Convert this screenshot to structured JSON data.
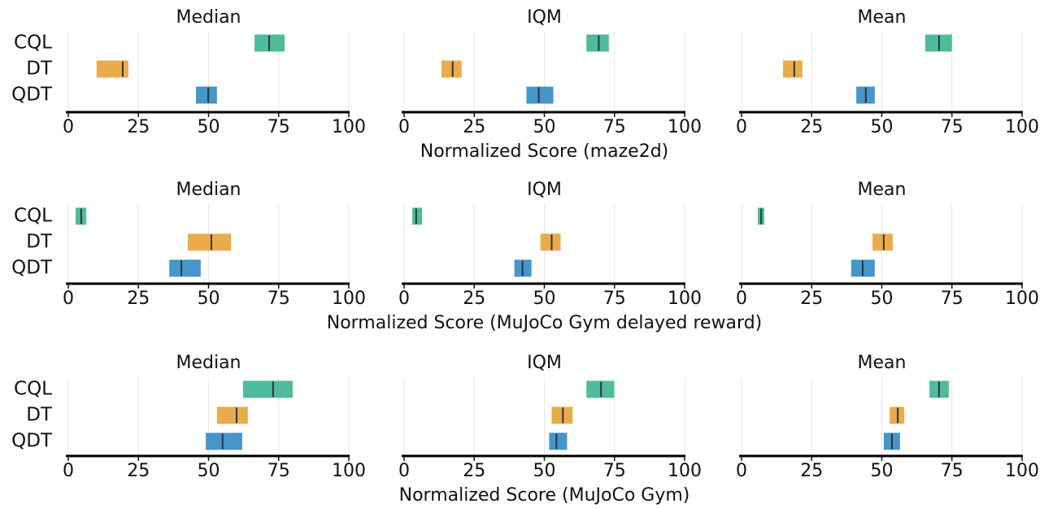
{
  "chart_data": [
    {
      "type": "interval",
      "title": "Median",
      "categories": [
        "CQL",
        "DT",
        "QDT"
      ],
      "colors": [
        "#45b896",
        "#e9a840",
        "#3b90c8"
      ],
      "values": [
        71.6,
        19.4,
        49.9
      ],
      "lower": [
        66.4,
        10.1,
        45.5
      ],
      "upper": [
        77.1,
        21.4,
        53
      ],
      "xlim": [
        0,
        100
      ],
      "xticks": [
        0,
        25,
        50,
        75,
        100
      ],
      "grid": true
    },
    {
      "type": "interval",
      "title": "IQM",
      "xlabel": "Normalized Score (maze2d)",
      "colors": [
        "#45b896",
        "#e9a840",
        "#3b90c8"
      ],
      "values": [
        69.4,
        17.3,
        48
      ],
      "lower": [
        65,
        13.3,
        43.6
      ],
      "upper": [
        73,
        20.5,
        53.2
      ],
      "xlim": [
        0,
        100
      ],
      "xticks": [
        0,
        25,
        50,
        75,
        100
      ],
      "grid": true
    },
    {
      "type": "interval",
      "title": "Mean",
      "colors": [
        "#45b896",
        "#e9a840",
        "#3b90c8"
      ],
      "values": [
        70.4,
        18.8,
        44.3
      ],
      "lower": [
        65.5,
        14.8,
        40.9
      ],
      "upper": [
        75,
        21.7,
        47.5
      ],
      "xlim": [
        0,
        100
      ],
      "xticks": [
        0,
        25,
        50,
        75,
        100
      ],
      "grid": true
    },
    {
      "type": "interval",
      "title": "Median",
      "categories": [
        "CQL",
        "DT",
        "QDT"
      ],
      "colors": [
        "#45b896",
        "#e9a840",
        "#3b90c8"
      ],
      "values": [
        4.6,
        51,
        40.3
      ],
      "lower": [
        2.6,
        42.6,
        36
      ],
      "upper": [
        6.4,
        58,
        47.2
      ],
      "xlim": [
        0,
        100
      ],
      "xticks": [
        0,
        25,
        50,
        75,
        100
      ],
      "grid": true
    },
    {
      "type": "interval",
      "title": "IQM",
      "xlabel": "Normalized Score (MuJoCo Gym delayed reward)",
      "colors": [
        "#45b896",
        "#e9a840",
        "#3b90c8"
      ],
      "values": [
        4.3,
        52.6,
        42.2
      ],
      "lower": [
        2.9,
        48.6,
        39.3
      ],
      "upper": [
        6.4,
        55.8,
        45.4
      ],
      "xlim": [
        0,
        100
      ],
      "xticks": [
        0,
        25,
        50,
        75,
        100
      ],
      "grid": true
    },
    {
      "type": "interval",
      "title": "Mean",
      "colors": [
        "#45b896",
        "#e9a840",
        "#3b90c8"
      ],
      "values": [
        7,
        50.7,
        43.2
      ],
      "lower": [
        5.8,
        46.7,
        39.1
      ],
      "upper": [
        8.1,
        53.9,
        47.5
      ],
      "xlim": [
        0,
        100
      ],
      "xticks": [
        0,
        25,
        50,
        75,
        100
      ],
      "grid": true
    },
    {
      "type": "interval",
      "title": "Median",
      "categories": [
        "CQL",
        "DT",
        "QDT"
      ],
      "colors": [
        "#45b896",
        "#e9a840",
        "#3b90c8"
      ],
      "values": [
        73,
        60,
        55
      ],
      "lower": [
        62.3,
        53,
        49
      ],
      "upper": [
        80,
        64,
        62
      ],
      "xlim": [
        0,
        100
      ],
      "xticks": [
        0,
        25,
        50,
        75,
        100
      ],
      "grid": true
    },
    {
      "type": "interval",
      "title": "IQM",
      "xlabel": "Normalized Score (MuJoCo Gym)",
      "colors": [
        "#45b896",
        "#e9a840",
        "#3b90c8"
      ],
      "values": [
        70.2,
        56.6,
        54.3
      ],
      "lower": [
        65,
        52.6,
        51.7
      ],
      "upper": [
        74.9,
        60.1,
        58.1
      ],
      "xlim": [
        0,
        100
      ],
      "xticks": [
        0,
        25,
        50,
        75,
        100
      ],
      "grid": true
    },
    {
      "type": "interval",
      "title": "Mean",
      "colors": [
        "#45b896",
        "#e9a840",
        "#3b90c8"
      ],
      "values": [
        70.4,
        55.7,
        53.6
      ],
      "lower": [
        67,
        52.8,
        50.7
      ],
      "upper": [
        73.9,
        58,
        56.5
      ],
      "xlim": [
        0,
        100
      ],
      "xticks": [
        0,
        25,
        50,
        75,
        100
      ],
      "grid": true
    }
  ]
}
